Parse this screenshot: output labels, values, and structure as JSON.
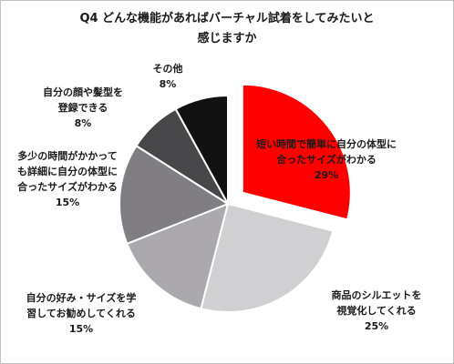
{
  "chart_data": {
    "type": "pie",
    "title": [
      "Q4 どんな機能があればバーチャル試着をしてみたいと",
      "感じますか"
    ],
    "slices": [
      {
        "label_lines": [
          "短い時間で簡単に自分の体型に",
          "合ったサイズがわかる"
        ],
        "value": 29,
        "value_label": "29%",
        "color": "#ff0000",
        "exploded": true
      },
      {
        "label_lines": [
          "商品のシルエットを",
          "視覚化してくれる"
        ],
        "value": 25,
        "value_label": "25%",
        "color": "#d0cfd2",
        "exploded": false
      },
      {
        "label_lines": [
          "自分の好み・サイズを学",
          "習してお勧めしてくれる"
        ],
        "value": 15,
        "value_label": "15%",
        "color": "#aba9ad",
        "exploded": false
      },
      {
        "label_lines": [
          "多少の時間がかかって",
          "も詳細に自分の体型に",
          "合ったサイズがわかる"
        ],
        "value": 15,
        "value_label": "15%",
        "color": "#807e82",
        "exploded": false
      },
      {
        "label_lines": [
          "自分の顔や髪型を",
          "登録できる"
        ],
        "value": 8,
        "value_label": "8%",
        "color": "#474649",
        "exploded": false
      },
      {
        "label_lines": [
          "その他"
        ],
        "value": 8,
        "value_label": "8%",
        "color": "#111111",
        "exploded": false
      }
    ]
  }
}
